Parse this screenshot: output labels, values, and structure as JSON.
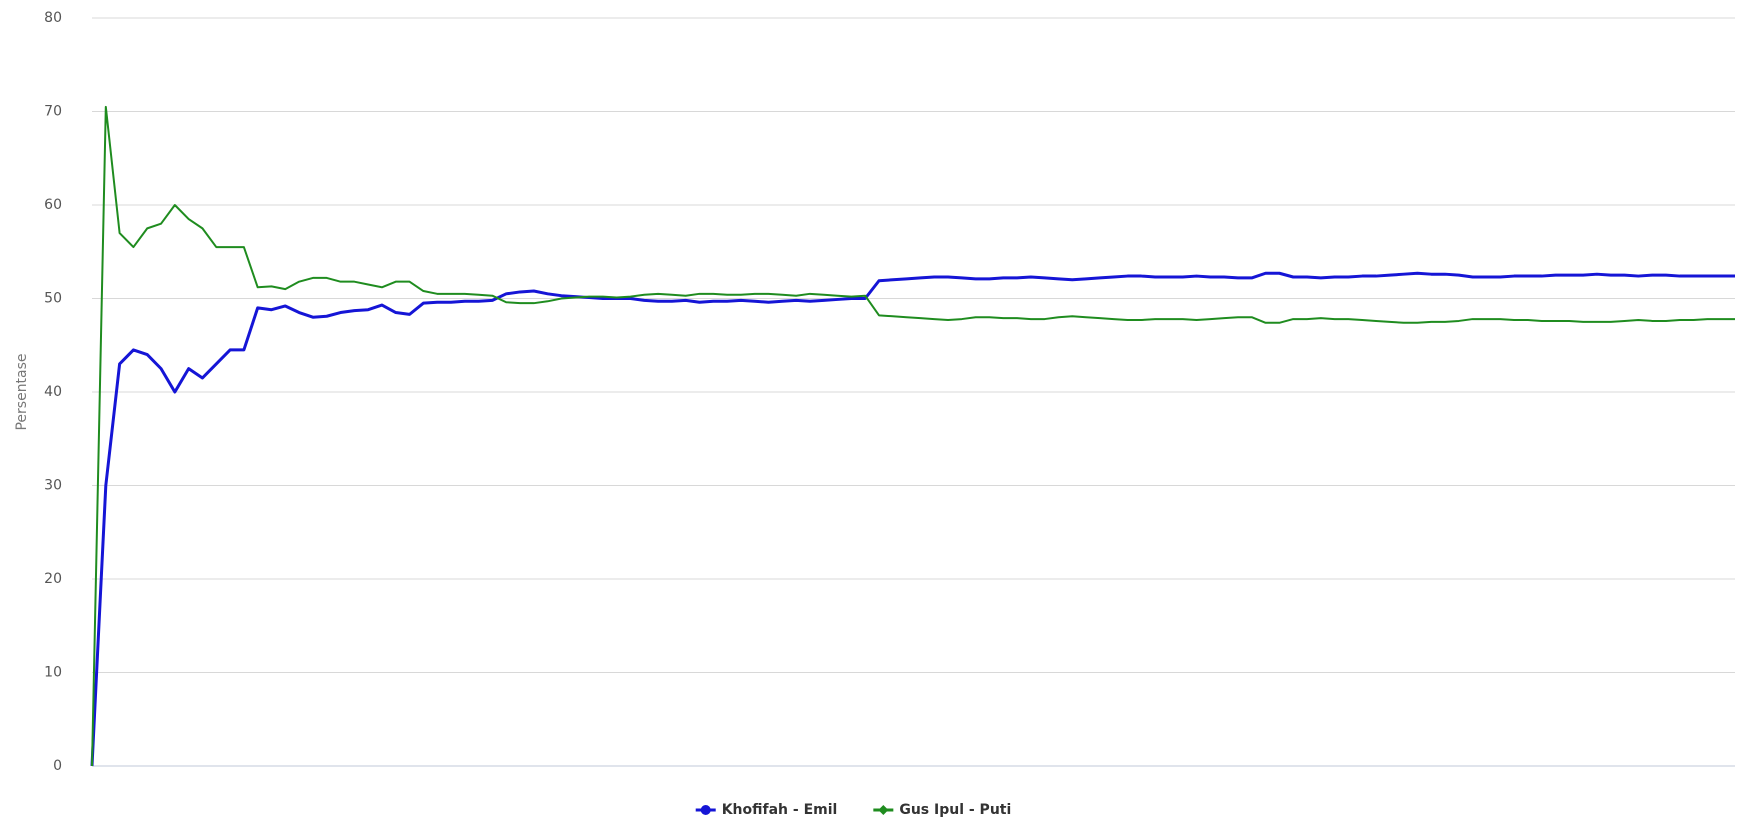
{
  "chart_data": {
    "type": "line",
    "y_label": "Persentase",
    "ylim": [
      0,
      80
    ],
    "yticks": [
      0,
      10,
      20,
      30,
      40,
      50,
      60,
      70,
      80
    ],
    "grid": true,
    "series": [
      {
        "name": "Khofifah - Emil",
        "color": "#1515d6",
        "marker": "circle",
        "values": [
          0,
          30,
          43,
          44.5,
          44,
          42.5,
          40,
          42.5,
          41.5,
          43,
          44.5,
          44.5,
          49,
          48.8,
          49.2,
          48.5,
          48,
          48.1,
          48.5,
          48.7,
          48.8,
          49.3,
          48.5,
          48.3,
          49.5,
          49.6,
          49.6,
          49.7,
          49.7,
          49.8,
          50.5,
          50.7,
          50.8,
          50.5,
          50.3,
          50.2,
          50.1,
          50,
          50,
          50,
          49.8,
          49.7,
          49.7,
          49.8,
          49.6,
          49.7,
          49.7,
          49.8,
          49.7,
          49.6,
          49.7,
          49.8,
          49.7,
          49.8,
          49.9,
          50,
          50,
          51.9,
          52,
          52.1,
          52.2,
          52.3,
          52.3,
          52.2,
          52.1,
          52.1,
          52.2,
          52.2,
          52.3,
          52.2,
          52.1,
          52,
          52.1,
          52.2,
          52.3,
          52.4,
          52.4,
          52.3,
          52.3,
          52.3,
          52.4,
          52.3,
          52.3,
          52.2,
          52.2,
          52.7,
          52.7,
          52.3,
          52.3,
          52.2,
          52.3,
          52.3,
          52.4,
          52.4,
          52.5,
          52.6,
          52.7,
          52.6,
          52.6,
          52.5,
          52.3,
          52.3,
          52.3,
          52.4,
          52.4,
          52.4,
          52.5,
          52.5,
          52.5,
          52.6,
          52.5,
          52.5,
          52.4,
          52.5,
          52.5,
          52.4,
          52.4,
          52.4,
          52.4,
          52.4
        ]
      },
      {
        "name": "Gus Ipul - Puti",
        "color": "#1f8c1f",
        "marker": "diamond",
        "values": [
          0,
          70.5,
          57,
          55.5,
          57.5,
          58,
          60,
          58.5,
          57.5,
          55.5,
          55.5,
          55.5,
          51.2,
          51.3,
          51,
          51.8,
          52.2,
          52.2,
          51.8,
          51.8,
          51.5,
          51.2,
          51.8,
          51.8,
          50.8,
          50.5,
          50.5,
          50.5,
          50.4,
          50.3,
          49.6,
          49.5,
          49.5,
          49.7,
          50,
          50.1,
          50.2,
          50.2,
          50.1,
          50.2,
          50.4,
          50.5,
          50.4,
          50.3,
          50.5,
          50.5,
          50.4,
          50.4,
          50.5,
          50.5,
          50.4,
          50.3,
          50.5,
          50.4,
          50.3,
          50.2,
          50.3,
          48.2,
          48.1,
          48,
          47.9,
          47.8,
          47.7,
          47.8,
          48,
          48,
          47.9,
          47.9,
          47.8,
          47.8,
          48,
          48.1,
          48,
          47.9,
          47.8,
          47.7,
          47.7,
          47.8,
          47.8,
          47.8,
          47.7,
          47.8,
          47.9,
          48,
          48,
          47.4,
          47.4,
          47.8,
          47.8,
          47.9,
          47.8,
          47.8,
          47.7,
          47.6,
          47.5,
          47.4,
          47.4,
          47.5,
          47.5,
          47.6,
          47.8,
          47.8,
          47.8,
          47.7,
          47.7,
          47.6,
          47.6,
          47.6,
          47.5,
          47.5,
          47.5,
          47.6,
          47.7,
          47.6,
          47.6,
          47.7,
          47.7,
          47.8,
          47.8,
          47.8
        ]
      }
    ]
  }
}
